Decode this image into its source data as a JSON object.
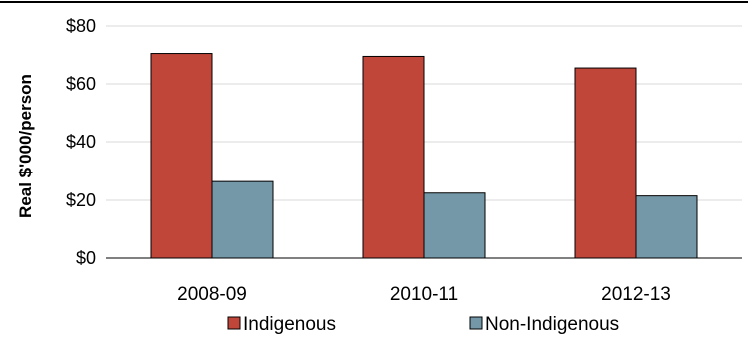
{
  "chart_data": {
    "type": "bar",
    "title": "",
    "xlabel": "",
    "ylabel": "Real $'000/person",
    "categories": [
      "2008-09",
      "2010-11",
      "2012-13"
    ],
    "series": [
      {
        "name": "Indigenous",
        "values": [
          70.5,
          69.5,
          65.5
        ],
        "color": "#c0463a"
      },
      {
        "name": "Non-Indigenous",
        "values": [
          26.5,
          22.5,
          21.5
        ],
        "color": "#7598a8"
      }
    ],
    "ylim": [
      0,
      80
    ],
    "yticks": [
      0,
      20,
      40,
      60,
      80
    ],
    "ytick_labels": [
      "$0",
      "$20",
      "$40",
      "$60",
      "$80"
    ],
    "grid": true,
    "legend_position": "bottom",
    "colors": {
      "border": "#000000",
      "grid": "#d9d9d9",
      "axis": "#000000"
    }
  }
}
